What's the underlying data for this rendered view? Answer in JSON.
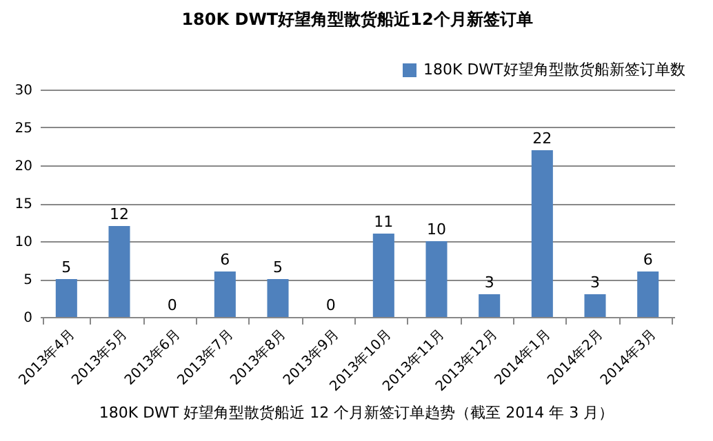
{
  "chart_data": {
    "type": "bar",
    "title": "180K DWT好望角型散货船近12个月新签订单",
    "categories": [
      "2013年4月",
      "2013年5月",
      "2013年6月",
      "2013年7月",
      "2013年8月",
      "2013年9月",
      "2013年10月",
      "2013年11月",
      "2013年12月",
      "2014年1月",
      "2014年2月",
      "2014年3月"
    ],
    "series": [
      {
        "name": "180K DWT好望角型散货船新签订单数",
        "color": "#4f81bd",
        "values": [
          5,
          12,
          0,
          6,
          5,
          0,
          11,
          10,
          3,
          22,
          3,
          6
        ]
      }
    ],
    "ylim": [
      0,
      30
    ],
    "yticks": [
      0,
      5,
      10,
      15,
      20,
      25,
      30
    ],
    "grid": "y",
    "legend": "top right",
    "data_labels": true,
    "annotations": [
      "180K DWT 好望角型散货船近 12 个月新签订单趋势（截至 2014 年 3 月）"
    ]
  }
}
